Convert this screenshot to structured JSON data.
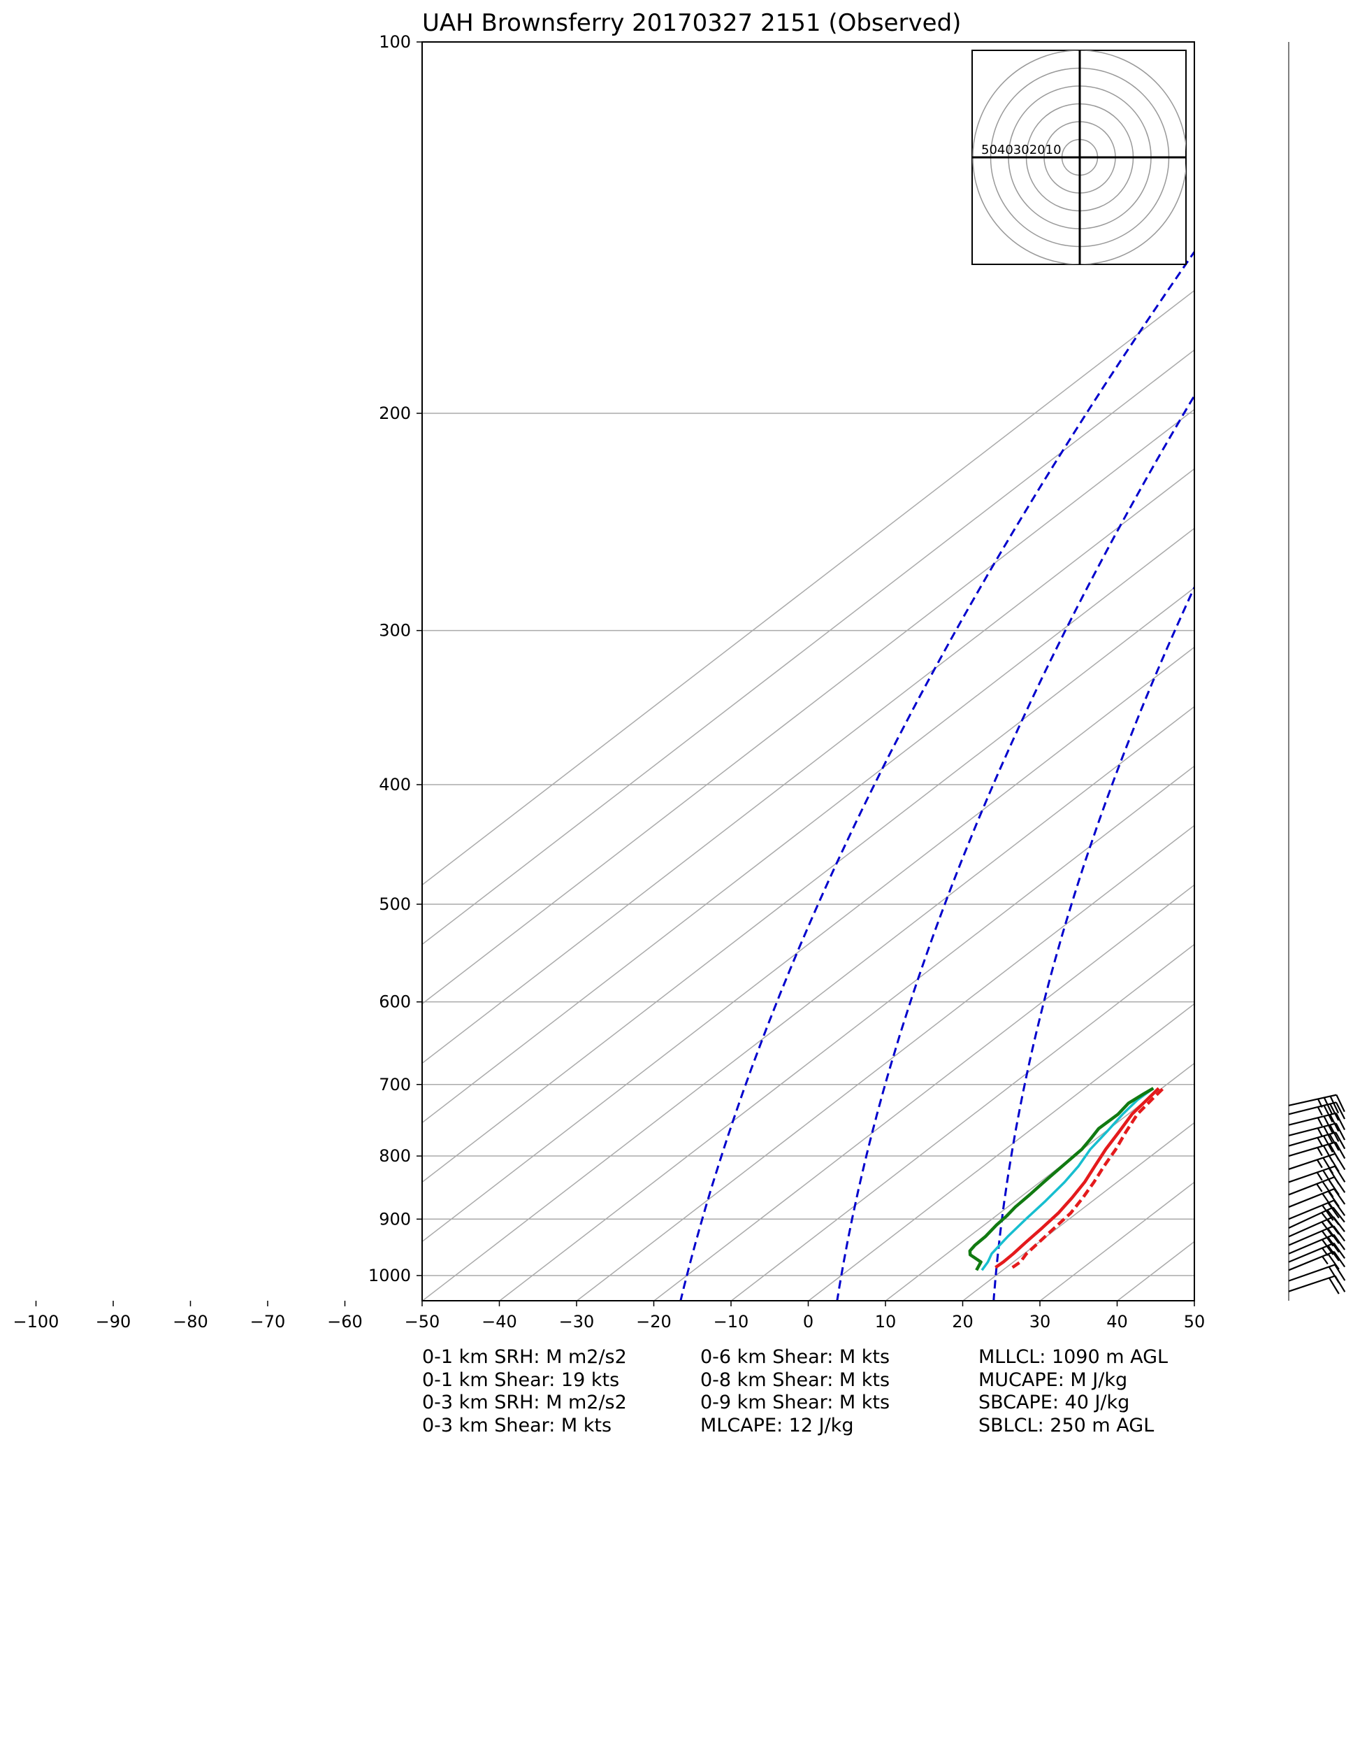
{
  "colors": {
    "temperature": "#e41a1c",
    "virtual_temperature": "#e41a1c",
    "dewpoint": "#117a11",
    "wetbulb": "#17becf",
    "dry_adiabat": "#0000cc",
    "isotherm": "#aaaaaa",
    "isobar": "#aaaaaa",
    "frame": "#000000"
  },
  "chart_data": {
    "type": "skew-t log-p",
    "title": "UAH Brownsferry 20170327 2151   (Observed)",
    "x_axis": {
      "quantity": "temperature",
      "ticks": [
        -100,
        -90,
        -80,
        -70,
        -60,
        -50,
        -40,
        -30,
        -20,
        -10,
        0,
        10,
        20,
        30,
        40,
        50
      ],
      "tick_labels": [
        "−100",
        "−90",
        "−80",
        "−70",
        "−60",
        "−50",
        "−40",
        "−30",
        "−20",
        "−10",
        "0",
        "10",
        "20",
        "30",
        "40",
        "50"
      ],
      "plot_range_at_bottom": [
        -50,
        50
      ]
    },
    "y_axis": {
      "quantity": "pressure",
      "scale": "log",
      "inverted": true,
      "ticks": [
        100,
        200,
        300,
        400,
        500,
        600,
        700,
        800,
        900,
        1000
      ],
      "tick_labels": [
        "100",
        "200",
        "300",
        "400",
        "500",
        "600",
        "700",
        "800",
        "900",
        "1000"
      ],
      "range": [
        1050,
        100
      ]
    },
    "isotherms_c": [
      -120,
      -110,
      -100,
      -90,
      -80,
      -70,
      -60,
      -50,
      -40,
      -30,
      -20,
      -10,
      0,
      10,
      20,
      30,
      40,
      50
    ],
    "dry_adiabats_c_at_1000": [
      -20,
      0,
      20
    ],
    "grid": true,
    "series": [
      {
        "key": "virtual_temperature",
        "style": "dashed",
        "p": [
          985,
          975,
          960,
          940,
          915,
          890,
          865,
          840,
          815,
          790,
          765,
          740,
          720,
          705
        ],
        "t": [
          20.8,
          20.9,
          20.3,
          20.0,
          19.6,
          19.2,
          18.2,
          17.0,
          15.6,
          14.3,
          12.7,
          11.2,
          10.6,
          10.2
        ]
      },
      {
        "key": "temperature",
        "style": "solid",
        "p": [
          985,
          975,
          960,
          940,
          915,
          890,
          865,
          840,
          815,
          790,
          765,
          740,
          720,
          705
        ],
        "t": [
          18.6,
          18.7,
          18.6,
          18.3,
          18.0,
          17.6,
          16.8,
          15.8,
          14.4,
          13.0,
          11.8,
          10.5,
          10.0,
          9.6
        ]
      },
      {
        "key": "wetbulb",
        "style": "solid",
        "p": [
          990,
          975,
          960,
          930,
          900,
          870,
          840,
          815,
          790,
          765,
          740,
          720,
          705
        ],
        "t": [
          17.3,
          16.7,
          15.8,
          15.0,
          14.4,
          13.9,
          13.2,
          12.3,
          11.0,
          10.2,
          9.3,
          8.8,
          8.9
        ]
      },
      {
        "key": "dewpoint",
        "style": "solid",
        "p": [
          990,
          975,
          962,
          955,
          945,
          930,
          910,
          895,
          880,
          860,
          840,
          815,
          790,
          775,
          760,
          740,
          725,
          712,
          705
        ],
        "t": [
          16.6,
          15.8,
          13.2,
          12.5,
          12.2,
          12.1,
          11.6,
          11.4,
          11.0,
          10.8,
          10.5,
          10.2,
          9.9,
          9.3,
          8.6,
          8.7,
          8.2,
          8.6,
          8.9
        ]
      }
    ],
    "wind_barbs": {
      "p": [
        1030,
        1010,
        990,
        975,
        960,
        945,
        930,
        915,
        900,
        880,
        860,
        840,
        820,
        800,
        785,
        770,
        755,
        740,
        728
      ],
      "u_kt": [
        -18,
        -20,
        -22,
        -24,
        -26,
        -28,
        -27,
        -28,
        -29,
        -30,
        -31,
        -32,
        -33,
        -34,
        -35,
        -35,
        -36,
        -36,
        -36
      ],
      "v_kt": [
        -6,
        -7,
        -9,
        -10,
        -11,
        -12,
        -12,
        -13,
        -12,
        -12,
        -12,
        -11,
        -11,
        -10,
        -10,
        -9,
        -9,
        -9,
        -8
      ]
    },
    "hodograph": {
      "rings_kt": [
        10,
        20,
        30,
        40,
        50,
        60
      ],
      "ring_labels": [
        "50",
        "40",
        "30",
        "20",
        "10"
      ]
    }
  },
  "stats": {
    "col1": [
      "0-1 km SRH: M m2/s2",
      "0-1 km Shear: 19 kts",
      "0-3 km SRH: M m2/s2",
      "0-3 km Shear: M kts"
    ],
    "col2": [
      "0-6 km Shear: M kts",
      "0-8 km Shear: M kts",
      "0-9 km Shear: M kts",
      "MLCAPE: 12 J/kg"
    ],
    "col3": [
      "MLLCL: 1090 m AGL",
      "MUCAPE: M J/kg",
      "SBCAPE: 40 J/kg",
      "SBLCL: 250 m AGL"
    ]
  }
}
